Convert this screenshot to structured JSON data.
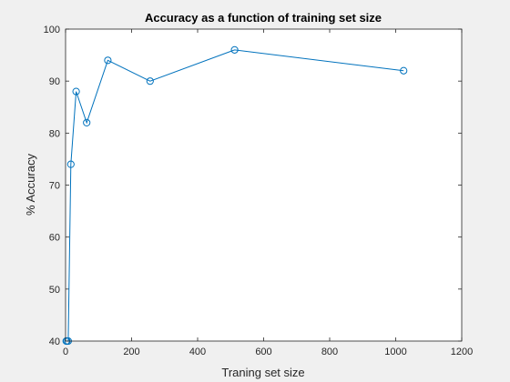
{
  "chart_data": {
    "type": "line",
    "title": "Accuracy as a function of training set size",
    "xlabel": "Traning set size",
    "ylabel": "% Accuracy",
    "xlim": [
      0,
      1200
    ],
    "ylim": [
      40,
      100
    ],
    "xticks": [
      0,
      200,
      400,
      600,
      800,
      1000,
      1200
    ],
    "yticks": [
      40,
      50,
      60,
      70,
      80,
      90,
      100
    ],
    "grid": false,
    "marker": "circle",
    "colors": {
      "line": "#0072bd",
      "axes_background": "#ffffff",
      "figure_background": "#f0f0f0",
      "axes_color": "#262626"
    },
    "series": [
      {
        "x": [
          2,
          4,
          8,
          16,
          32,
          64,
          128,
          256,
          512,
          1024
        ],
        "values": [
          40,
          40,
          40,
          74,
          88,
          82,
          94,
          90,
          96,
          92
        ]
      }
    ]
  }
}
